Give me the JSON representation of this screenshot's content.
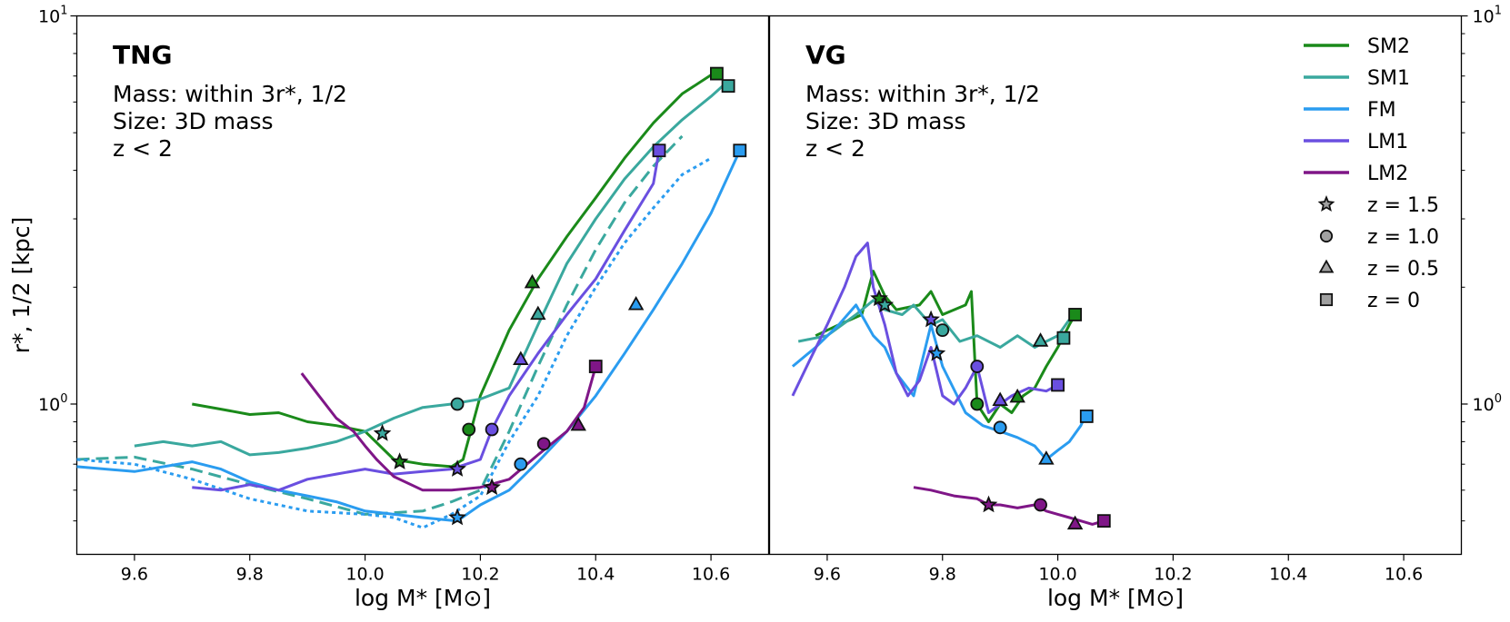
{
  "chart_data": [
    {
      "type": "line",
      "panel": "TNG",
      "title": "TNG",
      "annotations": [
        "Mass: within 3r*, 1/2",
        "Size: 3D mass",
        "z < 2"
      ],
      "xlabel": "log M* [M⊙]",
      "ylabel": "r*, 1/2 [kpc]",
      "yscale": "log",
      "xlim": [
        9.5,
        10.7
      ],
      "ylim": [
        0.41,
        10
      ],
      "xticks": [
        "9.6",
        "9.8",
        "10.0",
        "10.2",
        "10.4",
        "10.6"
      ],
      "yticks": [
        {
          "base": "10",
          "exp": "0"
        },
        {
          "base": "10",
          "exp": "1"
        }
      ],
      "series": [
        {
          "name": "SM2",
          "style": "solid",
          "x": [
            9.7,
            9.75,
            9.8,
            9.85,
            9.9,
            9.95,
            10.0,
            10.05,
            10.1,
            10.15,
            10.17,
            10.2,
            10.25,
            10.3,
            10.35,
            10.4,
            10.45,
            10.5,
            10.55,
            10.61
          ],
          "y": [
            1.0,
            0.97,
            0.94,
            0.95,
            0.9,
            0.88,
            0.85,
            0.72,
            0.7,
            0.69,
            0.72,
            1.05,
            1.55,
            2.1,
            2.7,
            3.4,
            4.3,
            5.3,
            6.3,
            7.2
          ]
        },
        {
          "name": "SM1",
          "style": "solid",
          "x": [
            9.6,
            9.65,
            9.7,
            9.75,
            9.8,
            9.85,
            9.9,
            9.95,
            10.0,
            10.05,
            10.1,
            10.15,
            10.2,
            10.25,
            10.3,
            10.35,
            10.4,
            10.45,
            10.5,
            10.55,
            10.6,
            10.63
          ],
          "y": [
            0.78,
            0.8,
            0.78,
            0.8,
            0.74,
            0.75,
            0.77,
            0.8,
            0.85,
            0.92,
            0.98,
            1.0,
            1.03,
            1.1,
            1.6,
            2.3,
            3.0,
            3.8,
            4.6,
            5.4,
            6.2,
            6.8
          ]
        },
        {
          "name": "SM1 (dashed)",
          "style": "dashed",
          "x": [
            9.5,
            9.6,
            9.7,
            9.8,
            9.9,
            10.0,
            10.1,
            10.15,
            10.2,
            10.25,
            10.3,
            10.35,
            10.4,
            10.45,
            10.5,
            10.55
          ],
          "y": [
            0.72,
            0.73,
            0.68,
            0.62,
            0.57,
            0.52,
            0.53,
            0.56,
            0.6,
            0.85,
            1.25,
            1.8,
            2.5,
            3.3,
            4.1,
            4.9
          ]
        },
        {
          "name": "FM (dotted)",
          "style": "dotted",
          "x": [
            9.5,
            9.6,
            9.7,
            9.8,
            9.9,
            10.0,
            10.05,
            10.1,
            10.15,
            10.2,
            10.25,
            10.3,
            10.35,
            10.4,
            10.45,
            10.5,
            10.55,
            10.6
          ],
          "y": [
            0.72,
            0.7,
            0.64,
            0.57,
            0.53,
            0.52,
            0.51,
            0.48,
            0.52,
            0.58,
            0.8,
            1.05,
            1.5,
            2.0,
            2.6,
            3.2,
            3.9,
            4.3
          ]
        },
        {
          "name": "FM",
          "style": "solid",
          "x": [
            9.5,
            9.6,
            9.7,
            9.75,
            9.8,
            9.85,
            9.9,
            9.95,
            10.0,
            10.05,
            10.1,
            10.16,
            10.2,
            10.25,
            10.3,
            10.35,
            10.4,
            10.45,
            10.5,
            10.55,
            10.6,
            10.65
          ],
          "y": [
            0.69,
            0.67,
            0.71,
            0.68,
            0.63,
            0.6,
            0.58,
            0.56,
            0.53,
            0.52,
            0.51,
            0.5,
            0.55,
            0.6,
            0.71,
            0.85,
            1.05,
            1.35,
            1.75,
            2.3,
            3.1,
            4.5
          ]
        },
        {
          "name": "LM1",
          "style": "solid",
          "x": [
            9.7,
            9.75,
            9.8,
            9.85,
            9.9,
            9.95,
            10.0,
            10.05,
            10.1,
            10.15,
            10.2,
            10.22,
            10.25,
            10.3,
            10.35,
            10.4,
            10.45,
            10.5,
            10.51
          ],
          "y": [
            0.61,
            0.6,
            0.62,
            0.6,
            0.64,
            0.66,
            0.68,
            0.66,
            0.67,
            0.68,
            0.72,
            0.86,
            1.05,
            1.35,
            1.7,
            2.1,
            2.8,
            3.7,
            4.5
          ]
        },
        {
          "name": "LM2",
          "style": "solid",
          "x": [
            9.89,
            9.92,
            9.95,
            9.98,
            10.0,
            10.02,
            10.05,
            10.1,
            10.15,
            10.2,
            10.25,
            10.3,
            10.35,
            10.38,
            10.4
          ],
          "y": [
            1.2,
            1.05,
            0.92,
            0.85,
            0.78,
            0.72,
            0.65,
            0.6,
            0.6,
            0.61,
            0.64,
            0.74,
            0.85,
            0.98,
            1.25
          ]
        }
      ],
      "markers": [
        {
          "series": "SM2",
          "z": "1.5",
          "x": 10.06,
          "y": 0.71
        },
        {
          "series": "SM2",
          "z": "1.0",
          "x": 10.18,
          "y": 0.86
        },
        {
          "series": "SM2",
          "z": "0.5",
          "x": 10.29,
          "y": 2.05
        },
        {
          "series": "SM2",
          "z": "0",
          "x": 10.61,
          "y": 7.1
        },
        {
          "series": "SM1",
          "z": "1.5",
          "x": 10.03,
          "y": 0.84
        },
        {
          "series": "SM1",
          "z": "1.0",
          "x": 10.16,
          "y": 1.0
        },
        {
          "series": "SM1",
          "z": "0.5",
          "x": 10.3,
          "y": 1.7
        },
        {
          "series": "SM1",
          "z": "0",
          "x": 10.63,
          "y": 6.6
        },
        {
          "series": "FM",
          "z": "1.5",
          "x": 10.16,
          "y": 0.51
        },
        {
          "series": "FM",
          "z": "1.0",
          "x": 10.27,
          "y": 0.7
        },
        {
          "series": "FM",
          "z": "0.5",
          "x": 10.47,
          "y": 1.8
        },
        {
          "series": "FM",
          "z": "0",
          "x": 10.65,
          "y": 4.5
        },
        {
          "series": "LM1",
          "z": "1.5",
          "x": 10.16,
          "y": 0.68
        },
        {
          "series": "LM1",
          "z": "1.0",
          "x": 10.22,
          "y": 0.86
        },
        {
          "series": "LM1",
          "z": "0.5",
          "x": 10.27,
          "y": 1.3
        },
        {
          "series": "LM1",
          "z": "0",
          "x": 10.51,
          "y": 4.5
        },
        {
          "series": "LM2",
          "z": "1.5",
          "x": 10.22,
          "y": 0.61
        },
        {
          "series": "LM2",
          "z": "1.0",
          "x": 10.31,
          "y": 0.79
        },
        {
          "series": "LM2",
          "z": "0.5",
          "x": 10.37,
          "y": 0.88
        },
        {
          "series": "LM2",
          "z": "0",
          "x": 10.4,
          "y": 1.25
        }
      ]
    },
    {
      "type": "line",
      "panel": "VG",
      "title": "VG",
      "annotations": [
        "Mass: within 3r*, 1/2",
        "Size: 3D mass",
        "z < 2"
      ],
      "xlabel": "log M* [M⊙]",
      "ylabel": "",
      "yscale": "log",
      "xlim": [
        9.5,
        10.7
      ],
      "ylim": [
        0.41,
        10
      ],
      "xticks": [
        "9.6",
        "9.8",
        "10.0",
        "10.2",
        "10.4",
        "10.6"
      ],
      "yticks": [
        {
          "base": "10",
          "exp": "0"
        },
        {
          "base": "10",
          "exp": "1"
        }
      ],
      "series": [
        {
          "name": "SM2",
          "style": "solid",
          "x": [
            9.58,
            9.62,
            9.66,
            9.68,
            9.7,
            9.72,
            9.76,
            9.78,
            9.8,
            9.84,
            9.85,
            9.86,
            9.88,
            9.9,
            9.92,
            9.94,
            9.96,
            9.98,
            10.0,
            10.02,
            10.03
          ],
          "y": [
            1.5,
            1.6,
            1.7,
            2.2,
            1.9,
            1.75,
            1.8,
            1.95,
            1.7,
            1.8,
            1.95,
            1.0,
            0.9,
            1.0,
            0.95,
            1.05,
            1.1,
            1.25,
            1.4,
            1.6,
            1.7
          ]
        },
        {
          "name": "SM1",
          "style": "solid",
          "x": [
            9.55,
            9.6,
            9.65,
            9.68,
            9.7,
            9.73,
            9.75,
            9.78,
            9.8,
            9.83,
            9.86,
            9.9,
            9.93,
            9.96,
            9.98,
            10.0,
            10.02
          ],
          "y": [
            1.45,
            1.5,
            1.7,
            1.85,
            1.75,
            1.7,
            1.8,
            1.6,
            1.65,
            1.45,
            1.5,
            1.4,
            1.5,
            1.4,
            1.45,
            1.5,
            1.65
          ]
        },
        {
          "name": "FM",
          "style": "solid",
          "x": [
            9.54,
            9.58,
            9.62,
            9.65,
            9.68,
            9.7,
            9.72,
            9.75,
            9.78,
            9.8,
            9.84,
            9.87,
            9.9,
            9.93,
            9.96,
            9.98,
            10.0,
            10.02,
            10.04,
            10.05
          ],
          "y": [
            1.25,
            1.4,
            1.6,
            1.8,
            1.5,
            1.4,
            1.2,
            1.05,
            1.6,
            1.25,
            0.95,
            0.88,
            0.85,
            0.82,
            0.78,
            0.72,
            0.76,
            0.8,
            0.88,
            0.95
          ]
        },
        {
          "name": "LM1",
          "style": "solid",
          "x": [
            9.54,
            9.57,
            9.6,
            9.63,
            9.65,
            9.67,
            9.68,
            9.7,
            9.72,
            9.74,
            9.76,
            9.78,
            9.8,
            9.82,
            9.84,
            9.86,
            9.88,
            9.9,
            9.92,
            9.95,
            9.98,
            10.0
          ],
          "y": [
            1.05,
            1.3,
            1.6,
            2.0,
            2.4,
            2.6,
            2.0,
            1.6,
            1.2,
            1.05,
            1.15,
            1.4,
            1.05,
            1.0,
            1.1,
            1.25,
            0.95,
            1.0,
            1.05,
            1.1,
            1.08,
            1.12
          ]
        },
        {
          "name": "LM2",
          "style": "solid",
          "x": [
            9.75,
            9.78,
            9.82,
            9.86,
            9.88,
            9.9,
            9.93,
            9.96,
            9.98,
            10.0,
            10.02,
            10.04,
            10.06,
            10.08
          ],
          "y": [
            0.61,
            0.6,
            0.58,
            0.57,
            0.55,
            0.55,
            0.54,
            0.55,
            0.53,
            0.52,
            0.51,
            0.5,
            0.49,
            0.5
          ]
        }
      ],
      "markers": [
        {
          "series": "SM2",
          "z": "1.5",
          "x": 9.69,
          "y": 1.87
        },
        {
          "series": "SM2",
          "z": "1.0",
          "x": 9.86,
          "y": 1.0
        },
        {
          "series": "SM2",
          "z": "0.5",
          "x": 9.93,
          "y": 1.04
        },
        {
          "series": "SM2",
          "z": "0",
          "x": 10.03,
          "y": 1.7
        },
        {
          "series": "SM1",
          "z": "1.5",
          "x": 9.7,
          "y": 1.8
        },
        {
          "series": "SM1",
          "z": "1.0",
          "x": 9.8,
          "y": 1.55
        },
        {
          "series": "SM1",
          "z": "0.5",
          "x": 9.97,
          "y": 1.45
        },
        {
          "series": "SM1",
          "z": "0",
          "x": 10.01,
          "y": 1.48
        },
        {
          "series": "FM",
          "z": "1.5",
          "x": 9.79,
          "y": 1.35
        },
        {
          "series": "FM",
          "z": "1.0",
          "x": 9.9,
          "y": 0.87
        },
        {
          "series": "FM",
          "z": "0.5",
          "x": 9.98,
          "y": 0.72
        },
        {
          "series": "FM",
          "z": "0",
          "x": 10.05,
          "y": 0.93
        },
        {
          "series": "LM1",
          "z": "1.5",
          "x": 9.78,
          "y": 1.65
        },
        {
          "series": "LM1",
          "z": "1.0",
          "x": 9.86,
          "y": 1.25
        },
        {
          "series": "LM1",
          "z": "0.5",
          "x": 9.9,
          "y": 1.02
        },
        {
          "series": "LM1",
          "z": "0",
          "x": 10.0,
          "y": 1.12
        },
        {
          "series": "LM2",
          "z": "1.5",
          "x": 9.88,
          "y": 0.55
        },
        {
          "series": "LM2",
          "z": "1.0",
          "x": 9.97,
          "y": 0.55
        },
        {
          "series": "LM2",
          "z": "0.5",
          "x": 10.03,
          "y": 0.49
        },
        {
          "series": "LM2",
          "z": "0",
          "x": 10.08,
          "y": 0.5
        }
      ]
    }
  ],
  "legend": {
    "location": "top-right",
    "lines": [
      {
        "label": "SM2",
        "color": "#1a8a1a"
      },
      {
        "label": "SM1",
        "color": "#3aa89e"
      },
      {
        "label": "FM",
        "color": "#2a9cf0"
      },
      {
        "label": "LM1",
        "color": "#6a4fe0"
      },
      {
        "label": "LM2",
        "color": "#7f1687"
      }
    ],
    "markers": [
      {
        "label": "z = 1.5",
        "shape": "star"
      },
      {
        "label": "z = 1.0",
        "shape": "circle"
      },
      {
        "label": "z = 0.5",
        "shape": "triangle"
      },
      {
        "label": "z = 0",
        "shape": "square"
      }
    ],
    "marker_color": "#a0a0a0"
  },
  "colors": {
    "SM2": "#1a8a1a",
    "SM1": "#3aa89e",
    "FM": "#2a9cf0",
    "LM1": "#6a4fe0",
    "LM2": "#7f1687"
  }
}
